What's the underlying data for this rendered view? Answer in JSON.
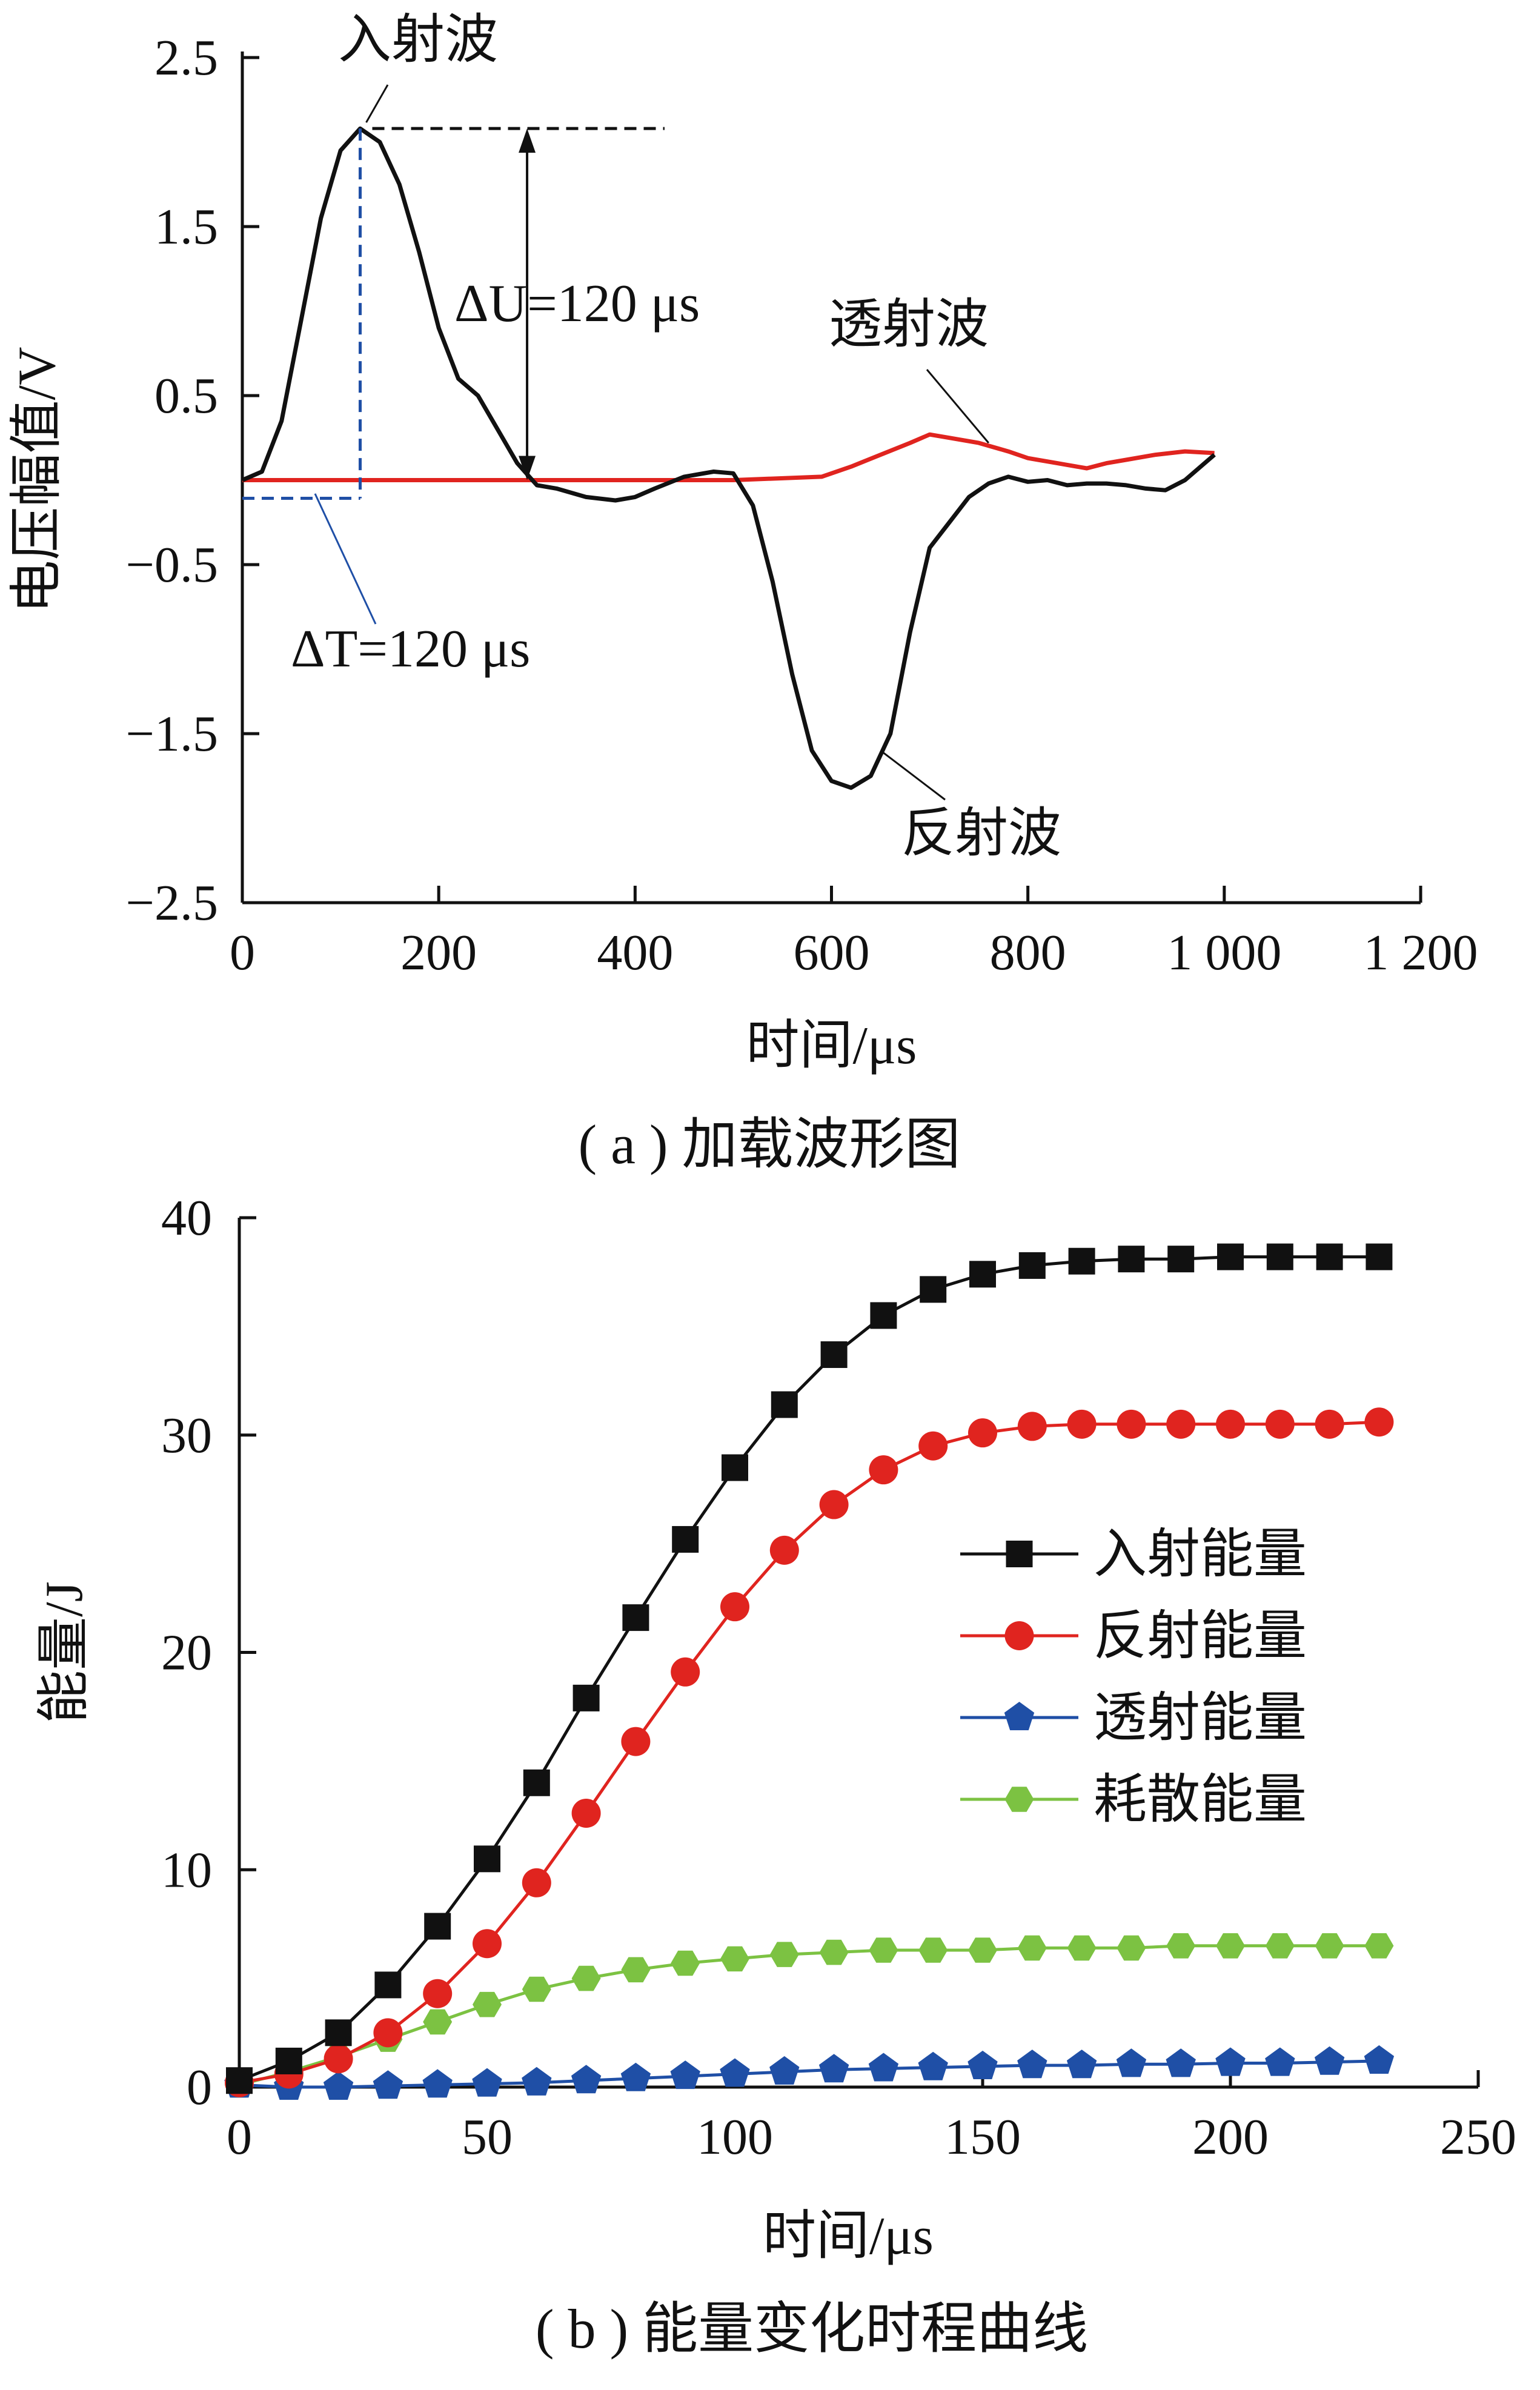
{
  "chart_data": [
    {
      "type": "line",
      "caption": "( a ) 加载波形图",
      "xlabel": "时间/μs",
      "ylabel": "电压幅值/V",
      "xlim": [
        0,
        1200
      ],
      "ylim": [
        -2.5,
        2.5
      ],
      "x_ticks": [
        0,
        200,
        400,
        600,
        800,
        1000,
        1200
      ],
      "x_tick_labels": [
        "0",
        "200",
        "400",
        "600",
        "800",
        "1 000",
        "1 200"
      ],
      "y_ticks": [
        2.5,
        1.5,
        0.5,
        -0.5,
        -1.5,
        -2.5
      ],
      "y_tick_labels": [
        "2.5",
        "1.5",
        "0.5",
        "−0.5",
        "−1.5",
        "−2.5"
      ],
      "series": [
        {
          "name": "入射波",
          "color": "#111111",
          "points": [
            [
              0,
              0
            ],
            [
              20,
              0.05
            ],
            [
              40,
              0.35
            ],
            [
              60,
              0.95
            ],
            [
              80,
              1.55
            ],
            [
              100,
              1.95
            ],
            [
              120,
              2.08
            ],
            [
              140,
              2.0
            ],
            [
              160,
              1.75
            ],
            [
              180,
              1.35
            ],
            [
              200,
              0.9
            ],
            [
              220,
              0.6
            ],
            [
              240,
              0.5
            ],
            [
              260,
              0.3
            ],
            [
              280,
              0.1
            ],
            [
              300,
              -0.03
            ],
            [
              320,
              -0.05
            ],
            [
              350,
              -0.1
            ],
            [
              380,
              -0.12
            ],
            [
              400,
              -0.1
            ],
            [
              420,
              -0.05
            ],
            [
              450,
              0.02
            ],
            [
              480,
              0.05
            ],
            [
              500,
              0.04
            ],
            [
              520,
              -0.15
            ],
            [
              540,
              -0.6
            ],
            [
              560,
              -1.15
            ],
            [
              580,
              -1.6
            ],
            [
              600,
              -1.78
            ],
            [
              620,
              -1.82
            ],
            [
              640,
              -1.75
            ],
            [
              660,
              -1.5
            ],
            [
              680,
              -0.9
            ],
            [
              700,
              -0.4
            ],
            [
              720,
              -0.25
            ],
            [
              740,
              -0.1
            ],
            [
              760,
              -0.02
            ],
            [
              780,
              0.02
            ],
            [
              800,
              -0.01
            ],
            [
              820,
              0.0
            ],
            [
              840,
              -0.03
            ],
            [
              860,
              -0.02
            ],
            [
              880,
              -0.02
            ],
            [
              900,
              -0.03
            ],
            [
              920,
              -0.05
            ],
            [
              940,
              -0.06
            ],
            [
              960,
              0.0
            ],
            [
              990,
              0.15
            ]
          ]
        },
        {
          "name": "透射波",
          "color": "#e0241f",
          "points": [
            [
              0,
              0
            ],
            [
              100,
              0
            ],
            [
              200,
              0
            ],
            [
              300,
              0
            ],
            [
              400,
              0
            ],
            [
              500,
              0
            ],
            [
              590,
              0.02
            ],
            [
              620,
              0.08
            ],
            [
              650,
              0.15
            ],
            [
              680,
              0.22
            ],
            [
              700,
              0.27
            ],
            [
              720,
              0.25
            ],
            [
              750,
              0.22
            ],
            [
              780,
              0.17
            ],
            [
              800,
              0.13
            ],
            [
              830,
              0.1
            ],
            [
              860,
              0.07
            ],
            [
              880,
              0.1
            ],
            [
              900,
              0.12
            ],
            [
              930,
              0.15
            ],
            [
              960,
              0.17
            ],
            [
              990,
              0.16
            ]
          ]
        }
      ],
      "annotations": {
        "delta_u_label": "ΔU=120 μs",
        "delta_t_label": "ΔT=120 μs",
        "peak_point": [
          120,
          2.08
        ],
        "delta_u_bottom": 0
      }
    },
    {
      "type": "line",
      "caption": "( b ) 能量变化时程曲线",
      "xlabel": "时间/μs",
      "ylabel": "能量/J",
      "xlim": [
        0,
        250
      ],
      "ylim": [
        0,
        40
      ],
      "x_ticks": [
        0,
        50,
        100,
        150,
        200,
        250
      ],
      "y_ticks": [
        0,
        10,
        20,
        30,
        40
      ],
      "x": [
        0,
        10,
        20,
        30,
        40,
        50,
        60,
        70,
        80,
        90,
        100,
        110,
        120,
        130,
        140,
        150,
        160,
        170,
        180,
        190,
        200,
        210,
        220,
        230
      ],
      "legend_position": "right",
      "series": [
        {
          "name": "入射能量",
          "color": "#111111",
          "marker": "square",
          "values": [
            0.3,
            1.2,
            2.5,
            4.7,
            7.4,
            10.5,
            14.0,
            17.9,
            21.6,
            25.2,
            28.5,
            31.4,
            33.7,
            35.5,
            36.7,
            37.4,
            37.8,
            38.0,
            38.1,
            38.1,
            38.2,
            38.2,
            38.2,
            38.2
          ]
        },
        {
          "name": "反射能量",
          "color": "#e0241f",
          "marker": "circle",
          "values": [
            0.2,
            0.6,
            1.3,
            2.5,
            4.3,
            6.6,
            9.4,
            12.6,
            15.9,
            19.1,
            22.1,
            24.7,
            26.8,
            28.4,
            29.5,
            30.1,
            30.4,
            30.5,
            30.5,
            30.5,
            30.5,
            30.5,
            30.5,
            30.6
          ]
        },
        {
          "name": "透射能量",
          "color": "#1f4fa6",
          "marker": "pentagon",
          "values": [
            0.1,
            0.0,
            0.0,
            0.05,
            0.1,
            0.15,
            0.2,
            0.3,
            0.4,
            0.5,
            0.6,
            0.7,
            0.8,
            0.85,
            0.9,
            0.95,
            1.0,
            1.0,
            1.05,
            1.05,
            1.1,
            1.1,
            1.15,
            1.2
          ]
        },
        {
          "name": "耗散能量",
          "color": "#7cc242",
          "marker": "hexagon",
          "values": [
            0.1,
            0.7,
            1.4,
            2.2,
            3.0,
            3.8,
            4.5,
            5.0,
            5.4,
            5.7,
            5.9,
            6.1,
            6.2,
            6.3,
            6.3,
            6.3,
            6.4,
            6.4,
            6.4,
            6.5,
            6.5,
            6.5,
            6.5,
            6.5
          ]
        }
      ]
    }
  ]
}
